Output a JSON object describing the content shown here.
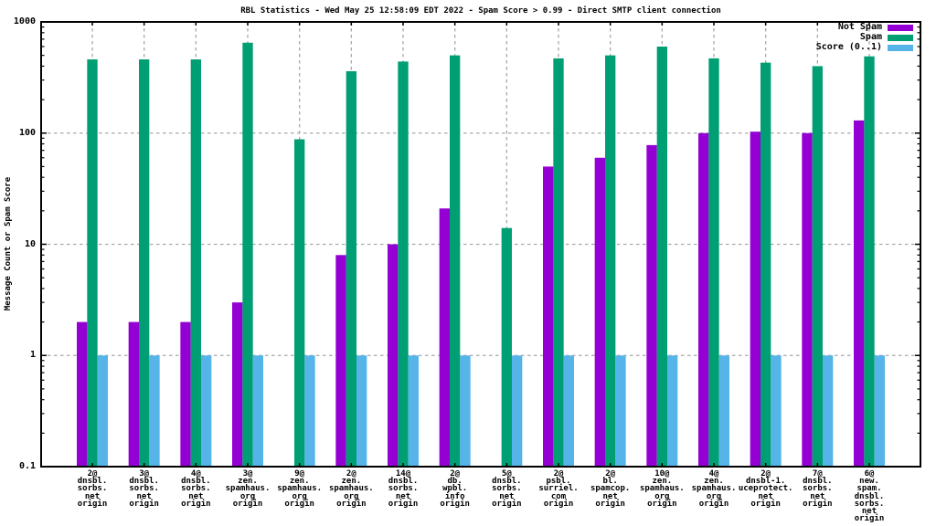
{
  "chart_data": {
    "type": "bar",
    "title": "RBL Statistics - Wed May 25 12:58:09 EDT 2022 - Spam Score > 0.99 - Direct SMTP client connection",
    "ylabel": "Message Count or Spam Score",
    "xlabel": "",
    "yscale": "log",
    "ylim": [
      0.1,
      1000
    ],
    "ytick_values": [
      1000,
      100,
      10,
      1,
      0.1
    ],
    "ytick_labels": [
      "1000",
      "100",
      "10",
      "1",
      "0.1"
    ],
    "grid": true,
    "legend_position": "top-right-inside",
    "grid_color": "#a8a8a8",
    "axis_color": "#000000",
    "categories": [
      [
        "2@",
        "dnsbl.",
        "sorbs.",
        "net",
        "origin"
      ],
      [
        "3@",
        "dnsbl.",
        "sorbs.",
        "net",
        "origin"
      ],
      [
        "4@",
        "dnsbl.",
        "sorbs.",
        "net",
        "origin"
      ],
      [
        "3@",
        "zen.",
        "spamhaus.",
        "org",
        "origin"
      ],
      [
        "9@",
        "zen.",
        "spamhaus.",
        "org",
        "origin"
      ],
      [
        "2@",
        "zen.",
        "spamhaus.",
        "org",
        "origin"
      ],
      [
        "14@",
        "dnsbl.",
        "sorbs.",
        "net",
        "origin"
      ],
      [
        "2@",
        "db.",
        "wpbl.",
        "info",
        "origin"
      ],
      [
        "5@",
        "dnsbl.",
        "sorbs.",
        "net",
        "origin"
      ],
      [
        "2@",
        "psbl.",
        "surriel.",
        "com",
        "origin"
      ],
      [
        "2@",
        "bl.",
        "spamcop.",
        "net",
        "origin"
      ],
      [
        "10@",
        "zen.",
        "spamhaus.",
        "org",
        "origin"
      ],
      [
        "4@",
        "zen.",
        "spamhaus.",
        "org",
        "origin"
      ],
      [
        "2@",
        "dnsbl-1.",
        "uceprotect.",
        "net",
        "origin"
      ],
      [
        "7@",
        "dnsbl.",
        "sorbs.",
        "net",
        "origin"
      ],
      [
        "6@",
        "new.",
        "spam.",
        "dnsbl.",
        "sorbs.",
        "net",
        "origin"
      ]
    ],
    "series": [
      {
        "name": "Not Spam",
        "color": "#9400d3",
        "values": [
          2,
          2,
          2,
          3,
          0,
          8,
          10,
          21,
          0,
          50,
          60,
          78,
          100,
          103,
          100,
          130
        ]
      },
      {
        "name": "Spam",
        "color": "#009e73",
        "values": [
          460,
          460,
          460,
          650,
          88,
          360,
          440,
          500,
          14,
          470,
          500,
          600,
          470,
          430,
          400,
          490
        ]
      },
      {
        "name": "Score (0..1)",
        "color": "#56b4e9",
        "values": [
          1,
          1,
          1,
          1,
          1,
          1,
          1,
          1,
          1,
          1,
          1,
          1,
          1,
          1,
          1,
          1
        ]
      }
    ]
  }
}
